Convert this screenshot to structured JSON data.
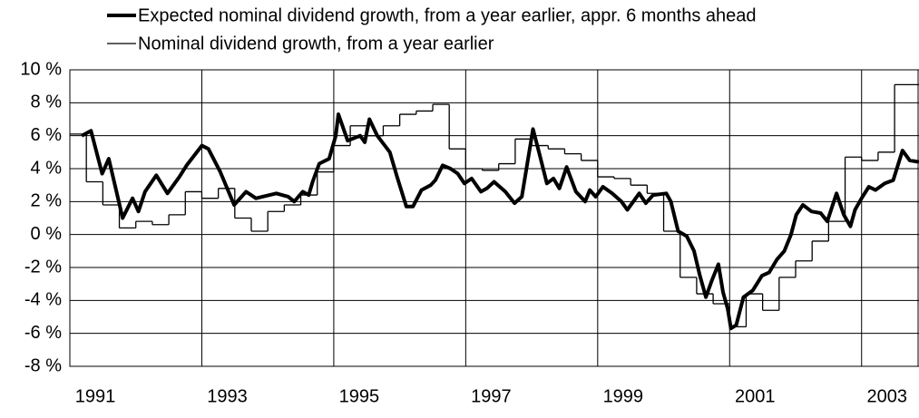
{
  "chart_data": {
    "type": "line",
    "grid": true,
    "step_series": 1,
    "xlim": [
      1991,
      2003.87
    ],
    "xticks": [
      1991,
      1993,
      1995,
      1997,
      1999,
      2001,
      2003
    ],
    "ylim": [
      -8,
      10
    ],
    "yticks": [
      {
        "value": -8,
        "label": "-8 %"
      },
      {
        "value": -6,
        "label": "-6 %"
      },
      {
        "value": -4,
        "label": "-4 %"
      },
      {
        "value": -2,
        "label": "-2 %"
      },
      {
        "value": 0,
        "label": "0 %"
      },
      {
        "value": 2,
        "label": "2 %"
      },
      {
        "value": 4,
        "label": "4 %"
      },
      {
        "value": 6,
        "label": "6 %"
      },
      {
        "value": 8,
        "label": "8 %"
      },
      {
        "value": 10,
        "label": "10 %"
      }
    ],
    "series": [
      {
        "name": "Expected nominal dividend growth, from a year earlier, appr. 6 months ahead",
        "color": "#000000",
        "x": [
          1991.18,
          1991.32,
          1991.49,
          1991.59,
          1991.8,
          1991.95,
          1992.04,
          1992.14,
          1992.31,
          1992.48,
          1992.66,
          1992.77,
          1993.0,
          1993.1,
          1993.28,
          1993.49,
          1993.67,
          1993.82,
          1994.13,
          1994.31,
          1994.4,
          1994.53,
          1994.62,
          1994.68,
          1994.78,
          1994.93,
          1995.03,
          1995.07,
          1995.21,
          1995.4,
          1995.47,
          1995.54,
          1995.66,
          1995.85,
          1995.96,
          1996.1,
          1996.2,
          1996.33,
          1996.47,
          1996.54,
          1996.65,
          1996.77,
          1996.88,
          1996.98,
          1997.09,
          1997.23,
          1997.32,
          1997.43,
          1997.6,
          1997.74,
          1997.85,
          1998.02,
          1998.11,
          1998.23,
          1998.33,
          1998.42,
          1998.53,
          1998.67,
          1998.81,
          1998.88,
          1998.97,
          1999.08,
          1999.22,
          1999.36,
          1999.45,
          1999.63,
          1999.73,
          1999.84,
          2000.04,
          2000.11,
          2000.22,
          2000.35,
          2000.46,
          2000.55,
          2000.64,
          2000.73,
          2000.83,
          2000.9,
          2000.97,
          2001.02,
          2001.1,
          2001.21,
          2001.35,
          2001.49,
          2001.6,
          2001.72,
          2001.83,
          2001.93,
          2002.01,
          2002.11,
          2002.24,
          2002.38,
          2002.48,
          2002.62,
          2002.73,
          2002.83,
          2002.9,
          2003.0,
          2003.11,
          2003.21,
          2003.35,
          2003.48,
          2003.55,
          2003.62,
          2003.73,
          2003.87
        ],
        "values": [
          6.0,
          6.3,
          3.7,
          4.6,
          1.0,
          2.2,
          1.4,
          2.6,
          3.6,
          2.5,
          3.5,
          4.2,
          5.4,
          5.2,
          3.8,
          1.8,
          2.6,
          2.2,
          2.5,
          2.3,
          2.0,
          2.6,
          2.4,
          3.2,
          4.3,
          4.6,
          6.0,
          7.3,
          5.7,
          6.0,
          5.6,
          7.0,
          6.0,
          5.0,
          3.5,
          1.7,
          1.7,
          2.7,
          3.0,
          3.3,
          4.2,
          4.0,
          3.7,
          3.1,
          3.4,
          2.6,
          2.8,
          3.2,
          2.6,
          1.9,
          2.3,
          6.4,
          5.0,
          3.1,
          3.4,
          2.8,
          4.1,
          2.6,
          2.0,
          2.7,
          2.3,
          2.9,
          2.5,
          2.0,
          1.5,
          2.5,
          1.9,
          2.4,
          2.5,
          2.0,
          0.2,
          -0.1,
          -1.0,
          -2.5,
          -3.8,
          -2.8,
          -1.8,
          -3.5,
          -4.5,
          -5.7,
          -5.5,
          -3.8,
          -3.4,
          -2.5,
          -2.3,
          -1.5,
          -1.0,
          0.0,
          1.2,
          1.8,
          1.4,
          1.3,
          0.8,
          2.5,
          1.2,
          0.5,
          1.5,
          2.2,
          2.9,
          2.7,
          3.1,
          3.3,
          4.2,
          5.1,
          4.5,
          4.4
        ]
      },
      {
        "name": "Nominal dividend growth, from a year earlier",
        "color": "#000000",
        "x": [
          1991.0,
          1991.25,
          1991.5,
          1991.75,
          1992.0,
          1992.25,
          1992.5,
          1992.75,
          1993.0,
          1993.25,
          1993.5,
          1993.75,
          1994.0,
          1994.25,
          1994.5,
          1994.75,
          1995.0,
          1995.25,
          1995.5,
          1995.75,
          1996.0,
          1996.25,
          1996.5,
          1996.75,
          1997.0,
          1997.25,
          1997.5,
          1997.75,
          1998.0,
          1998.25,
          1998.5,
          1998.75,
          1999.0,
          1999.25,
          1999.5,
          1999.75,
          2000.0,
          2000.25,
          2000.5,
          2000.75,
          2001.0,
          2001.25,
          2001.5,
          2001.75,
          2002.0,
          2002.25,
          2002.5,
          2002.75,
          2003.0,
          2003.25,
          2003.5
        ],
        "values": [
          6.1,
          3.2,
          1.8,
          0.4,
          0.8,
          0.6,
          1.2,
          2.6,
          2.2,
          2.8,
          1.0,
          0.2,
          1.4,
          1.8,
          2.4,
          3.8,
          5.4,
          6.6,
          6.0,
          6.6,
          7.3,
          7.5,
          7.9,
          5.2,
          4.0,
          3.9,
          4.3,
          5.8,
          5.4,
          5.2,
          4.9,
          4.5,
          3.5,
          3.4,
          3.0,
          2.5,
          0.2,
          -2.6,
          -3.6,
          -4.2,
          -5.6,
          -3.6,
          -4.6,
          -2.6,
          -1.6,
          -0.4,
          0.8,
          4.7,
          4.5,
          5.0,
          9.1
        ]
      }
    ]
  }
}
